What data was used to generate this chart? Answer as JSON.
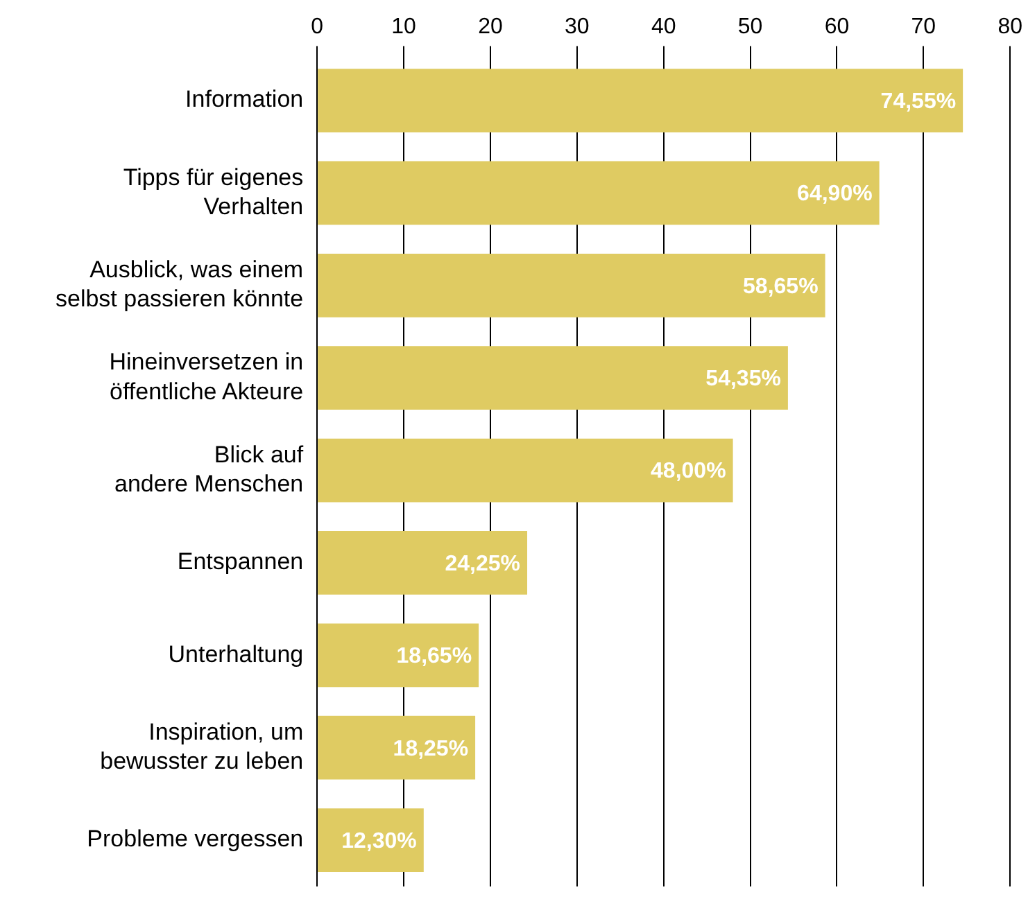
{
  "chart_data": {
    "type": "bar",
    "orientation": "horizontal",
    "categories": [
      "Information",
      "Tipps für eigenes\nVerhalten",
      "Ausblick, was einem\nselbst passieren könnte",
      "Hineinversetzen in\nöffentliche Akteure",
      "Blick auf\nandere Menschen",
      "Entspannen",
      "Unterhaltung",
      "Inspiration, um\nbewusster zu leben",
      "Probleme vergessen"
    ],
    "values": [
      74.55,
      64.9,
      58.65,
      54.35,
      48.0,
      24.25,
      18.65,
      18.25,
      12.3
    ],
    "value_labels": [
      "74,55%",
      "64,90%",
      "58,65%",
      "54,35%",
      "48,00%",
      "24,25%",
      "18,65%",
      "18,25%",
      "12,30%"
    ],
    "color": "#dfcb62",
    "xlim": [
      0,
      80
    ],
    "xticks": [
      0,
      10,
      20,
      30,
      40,
      50,
      60,
      70,
      80
    ],
    "grid": "x",
    "legend": false
  }
}
